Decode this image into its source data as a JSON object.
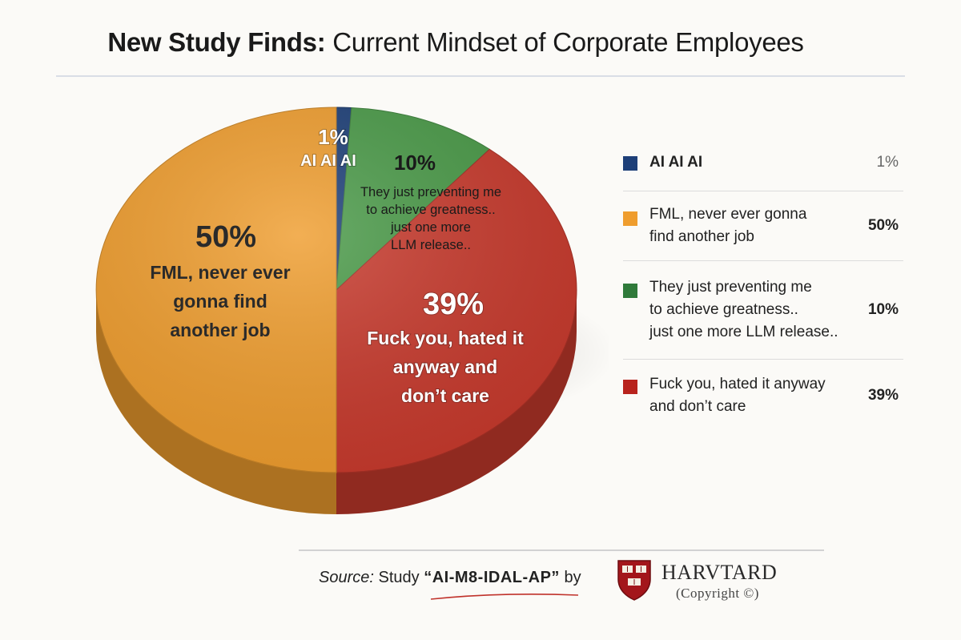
{
  "title": {
    "bold": "New Study Finds:",
    "rest": " Current Mindset of Corporate Employees"
  },
  "chart_data": {
    "type": "pie",
    "title": "New Study Finds: Current Mindset of Corporate Employees",
    "slices": [
      {
        "pct_label": "1%",
        "value": 1,
        "label": "AI AI AI",
        "color": "#1d3f78"
      },
      {
        "pct_label": "10%",
        "value": 10,
        "label": "They just preventing me to achieve greatness.. just one more LLM release..",
        "color": "#4a9a48"
      },
      {
        "pct_label": "39%",
        "value": 39,
        "label": "Fuck you, hated it anyway and don’t care",
        "color": "#c83a2d"
      },
      {
        "pct_label": "50%",
        "value": 50,
        "label": "FML, never ever gonna find another job",
        "color": "#ef9d2e"
      }
    ],
    "slice_text": {
      "ai": [
        "AI AI AI"
      ],
      "green": [
        "They just preventing me",
        "to achieve greatness..",
        "just one more",
        "LLM release.."
      ],
      "red": [
        "Fuck you, hated it",
        "anyway and",
        "don’t care"
      ],
      "orange": [
        "FML, never ever",
        "gonna find",
        "another job"
      ]
    }
  },
  "legend": [
    {
      "label": "AI AI AI",
      "value": "1%",
      "color": "#1d3f78",
      "bold_label": true,
      "muted_value": true
    },
    {
      "label": "FML, never ever gonna\nfind another job",
      "value": "50%",
      "color": "#ef9d2e"
    },
    {
      "label": "They just preventing me\nto achieve greatness..\njust one more LLM release..",
      "value": "10%",
      "color": "#2f7a3a"
    },
    {
      "label": "Fuck you, hated it anyway\nand don’t care",
      "value": "39%",
      "color": "#b8231d"
    }
  ],
  "footer": {
    "source_label": "Source:",
    "source_text": "Study",
    "study_name": "“AI-M8-IDAL-AP”",
    "by": "by",
    "shield_text": "VE RI TAS",
    "org": "HARVTARD",
    "org_sub": "(Copyright ©)"
  }
}
